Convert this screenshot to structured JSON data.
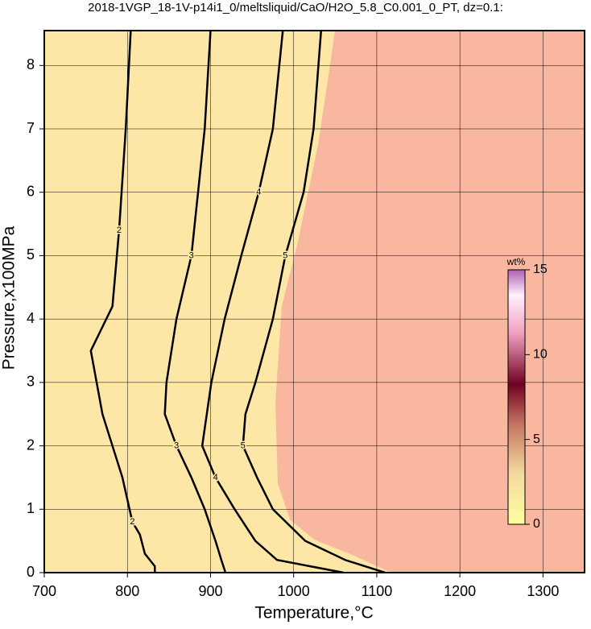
{
  "chart_data": {
    "type": "contour",
    "title": "2018-1VGP_18-1V-p14i1_0/meltsliquid/CaO/H2O_5.8_C0.001_0_PT, dz=0.1:",
    "x_label": "Temperature,°C",
    "y_label": "Pressure,x100MPa",
    "xlim": [
      700,
      1350
    ],
    "ylim": [
      0,
      8.55
    ],
    "xticks": [
      700,
      800,
      900,
      1000,
      1100,
      1200,
      1300
    ],
    "yticks": [
      0,
      1,
      2,
      3,
      4,
      5,
      6,
      7,
      8
    ],
    "grid": true,
    "contours": [
      {
        "level": 2,
        "x": [
          833,
          833,
          821,
          815,
          806,
          794,
          770,
          756,
          782,
          790,
          798,
          804
        ],
        "y": [
          0,
          0.1,
          0.3,
          0.6,
          0.8,
          1.5,
          2.5,
          3.5,
          4.2,
          5.4,
          7,
          8.55
        ]
      },
      {
        "level": 3,
        "x": [
          918,
          913,
          906,
          893,
          877,
          859,
          845,
          847,
          859,
          877,
          885,
          893,
          900
        ],
        "y": [
          0,
          0.2,
          0.5,
          1,
          1.5,
          2,
          2.5,
          3,
          4,
          5,
          6,
          7,
          8.55
        ]
      },
      {
        "level": 4,
        "x": [
          1060,
          980,
          954,
          929,
          906,
          890,
          901,
          917,
          937,
          958,
          975,
          987
        ],
        "y": [
          0,
          0.2,
          0.5,
          1,
          1.5,
          2,
          3,
          4,
          5,
          6,
          7,
          8.55
        ]
      },
      {
        "level": 5,
        "x": [
          1110,
          1062,
          1014,
          975,
          956,
          939,
          942,
          954,
          975,
          990,
          1012,
          1024,
          1033
        ],
        "y": [
          0,
          0.2,
          0.5,
          1,
          1.5,
          2,
          2.5,
          3,
          4,
          5,
          6,
          7,
          8.55
        ]
      }
    ],
    "colorbar": {
      "label": "wt%",
      "lim": [
        0,
        15
      ],
      "ticks": [
        0,
        5,
        10,
        15
      ]
    }
  }
}
